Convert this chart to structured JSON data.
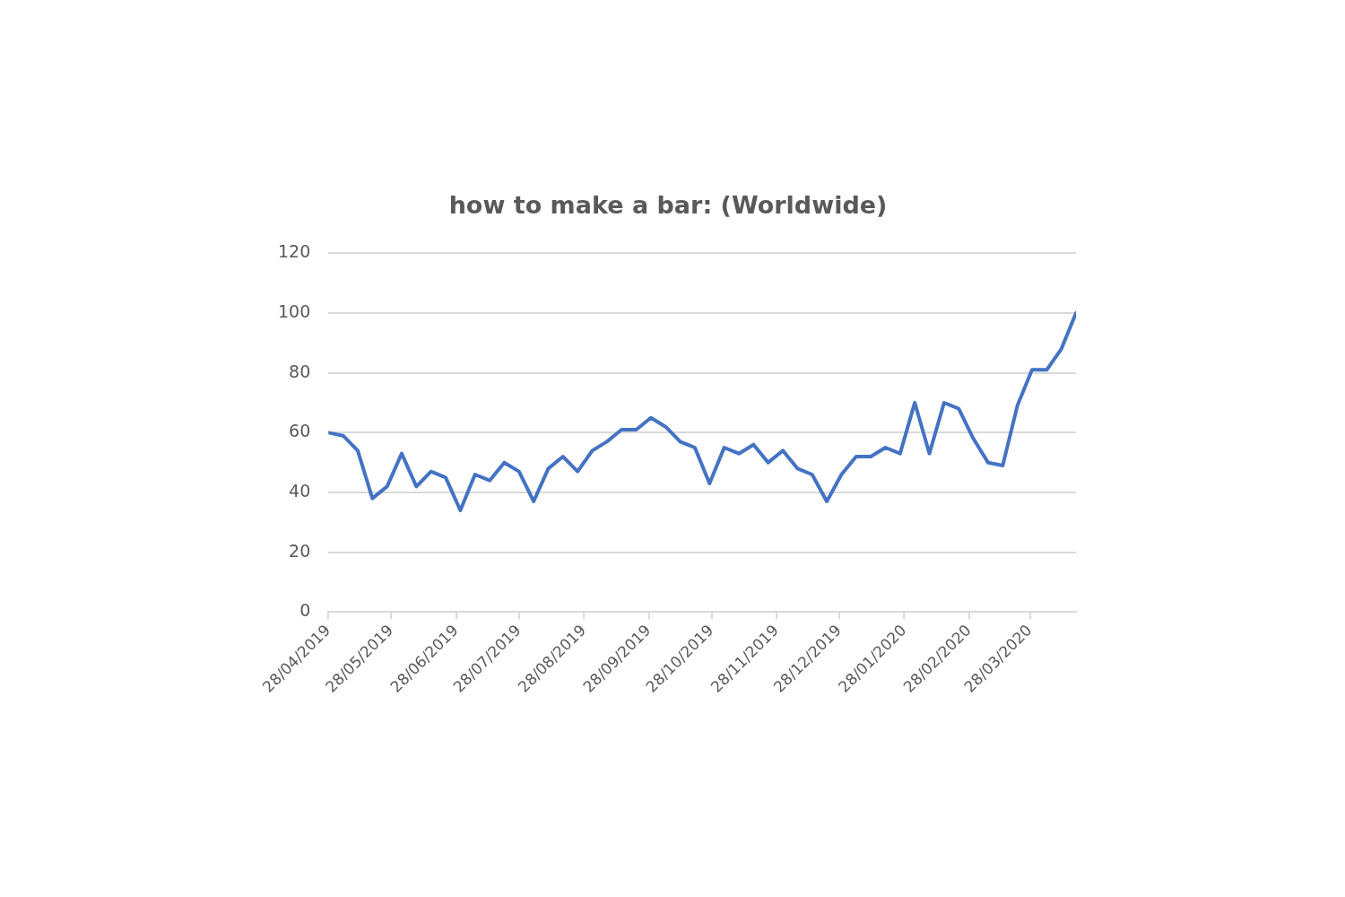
{
  "chart_data": {
    "type": "line",
    "title": "how to make a bar: (Worldwide)",
    "x": [
      "2019-04-28",
      "2019-05-05",
      "2019-05-12",
      "2019-05-19",
      "2019-05-26",
      "2019-06-02",
      "2019-06-09",
      "2019-06-16",
      "2019-06-23",
      "2019-06-30",
      "2019-07-07",
      "2019-07-14",
      "2019-07-21",
      "2019-07-28",
      "2019-08-04",
      "2019-08-11",
      "2019-08-18",
      "2019-08-25",
      "2019-09-01",
      "2019-09-08",
      "2019-09-15",
      "2019-09-22",
      "2019-09-29",
      "2019-10-06",
      "2019-10-13",
      "2019-10-20",
      "2019-10-27",
      "2019-11-03",
      "2019-11-10",
      "2019-11-17",
      "2019-11-24",
      "2019-12-01",
      "2019-12-08",
      "2019-12-15",
      "2019-12-22",
      "2019-12-29",
      "2020-01-05",
      "2020-01-12",
      "2020-01-19",
      "2020-01-26",
      "2020-02-02",
      "2020-02-09",
      "2020-02-16",
      "2020-02-23",
      "2020-03-01",
      "2020-03-08",
      "2020-03-15",
      "2020-03-22",
      "2020-03-29",
      "2020-04-05",
      "2020-04-12",
      "2020-04-19"
    ],
    "series": [
      {
        "color": "#4472c4",
        "values": [
          60,
          59,
          54,
          38,
          42,
          53,
          42,
          47,
          45,
          34,
          46,
          44,
          50,
          47,
          37,
          48,
          52,
          47,
          54,
          57,
          61,
          61,
          65,
          62,
          57,
          55,
          43,
          55,
          53,
          56,
          50,
          54,
          48,
          46,
          37,
          46,
          52,
          52,
          55,
          53,
          70,
          53,
          70,
          68,
          58,
          50,
          49,
          69,
          81,
          81,
          88,
          100
        ]
      }
    ],
    "xlim": [
      "2019-04-28",
      "2020-04-19"
    ],
    "xticks": [
      {
        "value": "2019-04-28",
        "label": "28/04/2019"
      },
      {
        "value": "2019-05-28",
        "label": "28/05/2019"
      },
      {
        "value": "2019-06-28",
        "label": "28/06/2019"
      },
      {
        "value": "2019-07-28",
        "label": "28/07/2019"
      },
      {
        "value": "2019-08-28",
        "label": "28/08/2019"
      },
      {
        "value": "2019-09-28",
        "label": "28/09/2019"
      },
      {
        "value": "2019-10-28",
        "label": "28/10/2019"
      },
      {
        "value": "2019-11-28",
        "label": "28/11/2019"
      },
      {
        "value": "2019-12-28",
        "label": "28/12/2019"
      },
      {
        "value": "2020-01-28",
        "label": "28/01/2020"
      },
      {
        "value": "2020-02-28",
        "label": "28/02/2020"
      },
      {
        "value": "2020-03-28",
        "label": "28/03/2020"
      }
    ],
    "ylim": [
      0,
      120
    ],
    "yticks": [
      0,
      20,
      40,
      60,
      80,
      100,
      120
    ],
    "grid": "y",
    "legend": false,
    "marker": "none",
    "line_style": "solid"
  }
}
